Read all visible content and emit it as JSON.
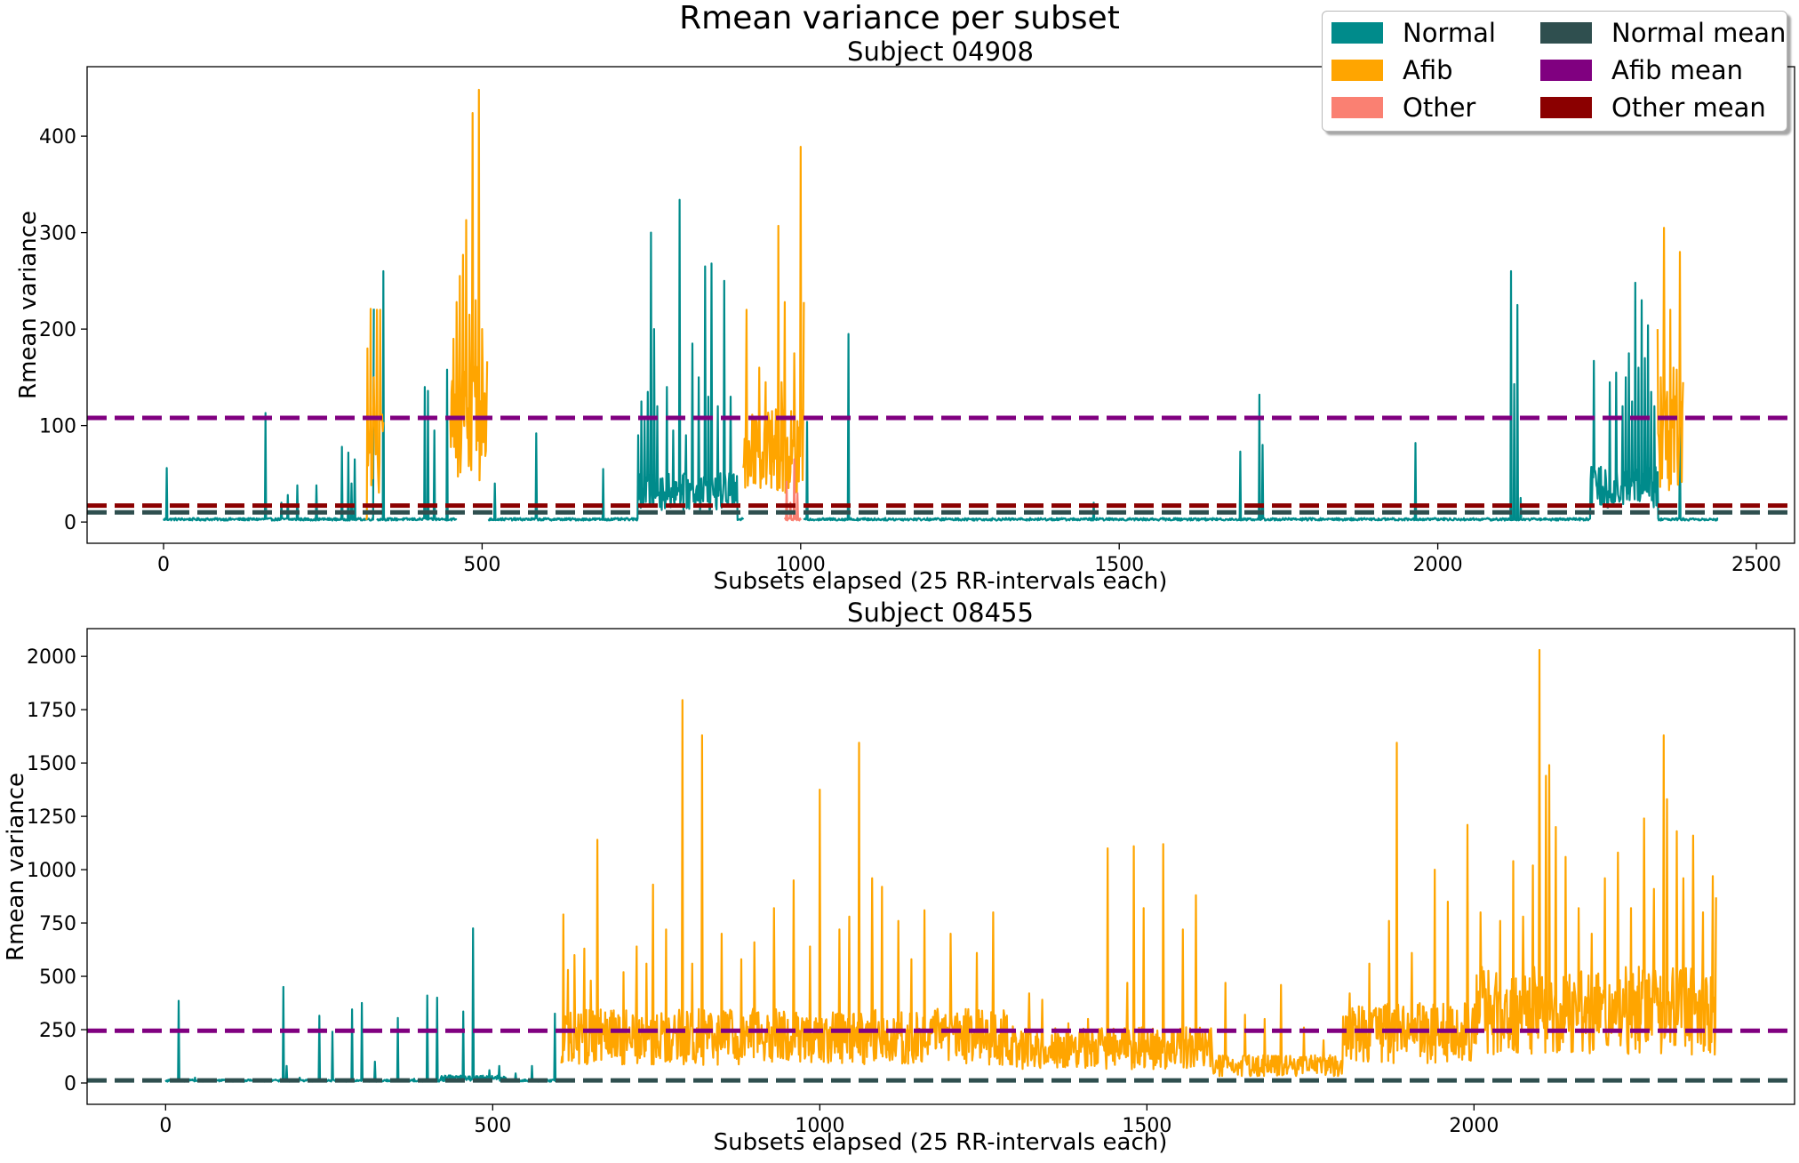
{
  "figure_title": "Rmean variance per subset",
  "legend": {
    "items": [
      {
        "label": "Normal",
        "color": "#008b8b"
      },
      {
        "label": "Afib",
        "color": "#ffa500"
      },
      {
        "label": "Other",
        "color": "#fa8072"
      },
      {
        "label": "Normal mean",
        "color": "#2f4f4f"
      },
      {
        "label": "Afib mean",
        "color": "#800080"
      },
      {
        "label": "Other mean",
        "color": "#8b0000"
      }
    ]
  },
  "chart_data": [
    {
      "type": "line",
      "title": "Subject 04908",
      "xlabel": "Subsets elapsed (25 RR-intervals each)",
      "ylabel": "Rmean variance",
      "xlim": [
        -120,
        2560
      ],
      "ylim": [
        -22,
        472
      ],
      "xticks": [
        "0",
        "500",
        "1000",
        "1500",
        "2000",
        "2500"
      ],
      "yticks": [
        "0",
        "100",
        "200",
        "300",
        "400"
      ],
      "grid": false,
      "baseline": 3,
      "series": [
        {
          "name": "Normal",
          "color": "#008b8b",
          "segments": [
            [
              0,
              330
            ],
            [
              335,
              460
            ],
            [
              510,
              910
            ],
            [
              1005,
              2440
            ]
          ],
          "spikes": [
            [
              5,
              56
            ],
            [
              160,
              113
            ],
            [
              185,
              20
            ],
            [
              195,
              28
            ],
            [
              210,
              38
            ],
            [
              240,
              38
            ],
            [
              280,
              78
            ],
            [
              290,
              72
            ],
            [
              295,
              40
            ],
            [
              300,
              65
            ],
            [
              330,
              221
            ],
            [
              345,
              260
            ],
            [
              410,
              140
            ],
            [
              415,
              136
            ],
            [
              425,
              95
            ],
            [
              445,
              158
            ],
            [
              520,
              40
            ],
            [
              585,
              92
            ],
            [
              690,
              55
            ],
            [
              745,
              90
            ],
            [
              750,
              125
            ],
            [
              755,
              105
            ],
            [
              760,
              135
            ],
            [
              765,
              300
            ],
            [
              770,
              200
            ],
            [
              775,
              120
            ],
            [
              790,
              140
            ],
            [
              800,
              95
            ],
            [
              810,
              334
            ],
            [
              820,
              90
            ],
            [
              830,
              185
            ],
            [
              840,
              150
            ],
            [
              850,
              265
            ],
            [
              855,
              130
            ],
            [
              860,
              268
            ],
            [
              870,
              120
            ],
            [
              880,
              250
            ],
            [
              890,
              130
            ],
            [
              1010,
              104
            ],
            [
              1075,
              195
            ],
            [
              1460,
              20
            ],
            [
              1690,
              73
            ],
            [
              1720,
              132
            ],
            [
              1725,
              80
            ],
            [
              1965,
              82
            ],
            [
              2115,
              260
            ],
            [
              2120,
              143
            ],
            [
              2125,
              225
            ],
            [
              2130,
              25
            ],
            [
              2245,
              167
            ],
            [
              2270,
              145
            ],
            [
              2280,
              155
            ],
            [
              2290,
              120
            ],
            [
              2295,
              150
            ],
            [
              2300,
              175
            ],
            [
              2305,
              125
            ],
            [
              2310,
              248
            ],
            [
              2315,
              160
            ],
            [
              2320,
              230
            ],
            [
              2325,
              170
            ],
            [
              2330,
              204
            ],
            [
              2335,
              135
            ],
            [
              2340,
              120
            ],
            [
              2380,
              100
            ]
          ],
          "clusters": [
            [
              745,
              900,
              35
            ],
            [
              2240,
              2345,
              40
            ]
          ]
        },
        {
          "name": "Afib",
          "color": "#ffa500",
          "segments": [
            [
              318,
              345
            ],
            [
              450,
              508
            ],
            [
              910,
              1005
            ],
            [
              2345,
              2385
            ]
          ],
          "spikes": [
            [
              320,
              180
            ],
            [
              325,
              221
            ],
            [
              330,
              150
            ],
            [
              335,
              220
            ],
            [
              340,
              220
            ],
            [
              455,
              190
            ],
            [
              460,
              228
            ],
            [
              465,
              255
            ],
            [
              470,
              277
            ],
            [
              475,
              313
            ],
            [
              480,
              215
            ],
            [
              485,
              424
            ],
            [
              490,
              230
            ],
            [
              495,
              448
            ],
            [
              500,
              200
            ],
            [
              915,
              220
            ],
            [
              925,
              105
            ],
            [
              935,
              160
            ],
            [
              945,
              145
            ],
            [
              955,
              115
            ],
            [
              965,
              307
            ],
            [
              970,
              145
            ],
            [
              975,
              228
            ],
            [
              990,
              175
            ],
            [
              1000,
              389
            ],
            [
              1005,
              228
            ],
            [
              2345,
              200
            ],
            [
              2350,
              150
            ],
            [
              2355,
              305
            ],
            [
              2360,
              135
            ],
            [
              2365,
              220
            ],
            [
              2370,
              160
            ],
            [
              2375,
              158
            ],
            [
              2380,
              280
            ],
            [
              2385,
              145
            ]
          ],
          "clusters": [
            [
              320,
              345,
              80
            ],
            [
              450,
              508,
              115
            ],
            [
              910,
              1005,
              85
            ],
            [
              2345,
              2385,
              90
            ]
          ]
        },
        {
          "name": "Other",
          "color": "#fa8072",
          "segments": [
            [
              975,
              1000
            ]
          ],
          "spikes": [
            [
              978,
              42
            ],
            [
              984,
              20
            ],
            [
              990,
              65
            ],
            [
              995,
              30
            ]
          ],
          "clusters": []
        }
      ],
      "means": [
        {
          "name": "Afib mean",
          "value": 108,
          "color": "#800080"
        },
        {
          "name": "Other mean",
          "value": 17,
          "color": "#8b0000"
        },
        {
          "name": "Normal mean",
          "value": 10,
          "color": "#2f4f4f"
        }
      ]
    },
    {
      "type": "line",
      "title": "Subject 08455",
      "xlabel": "Subsets elapsed (25 RR-intervals each)",
      "ylabel": "Rmean variance",
      "xlim": [
        -120,
        2490
      ],
      "ylim": [
        -100,
        2130
      ],
      "xticks": [
        "0",
        "500",
        "1000",
        "1500",
        "2000"
      ],
      "yticks": [
        "0",
        "250",
        "500",
        "750",
        "1000",
        "1250",
        "1500",
        "1750",
        "2000"
      ],
      "grid": false,
      "baseline": 12,
      "series": [
        {
          "name": "Normal",
          "color": "#008b8b",
          "segments": [
            [
              0,
              605
            ]
          ],
          "spikes": [
            [
              20,
              385
            ],
            [
              45,
              25
            ],
            [
              180,
              450
            ],
            [
              185,
              80
            ],
            [
              205,
              25
            ],
            [
              235,
              315
            ],
            [
              255,
              240
            ],
            [
              285,
              345
            ],
            [
              300,
              375
            ],
            [
              320,
              100
            ],
            [
              355,
              305
            ],
            [
              380,
              20
            ],
            [
              400,
              410
            ],
            [
              415,
              400
            ],
            [
              455,
              335
            ],
            [
              470,
              725
            ],
            [
              495,
              60
            ],
            [
              510,
              80
            ],
            [
              535,
              45
            ],
            [
              560,
              80
            ],
            [
              595,
              325
            ]
          ],
          "clusters": [
            [
              420,
              520,
              25
            ]
          ]
        },
        {
          "name": "Afib",
          "color": "#ffa500",
          "segments": [
            [
              605,
              2370
            ]
          ],
          "spikes": [
            [
              608,
              790
            ],
            [
              615,
              530
            ],
            [
              625,
              600
            ],
            [
              640,
              630
            ],
            [
              650,
              480
            ],
            [
              660,
              1140
            ],
            [
              700,
              520
            ],
            [
              720,
              640
            ],
            [
              735,
              560
            ],
            [
              745,
              930
            ],
            [
              765,
              720
            ],
            [
              790,
              1795
            ],
            [
              805,
              560
            ],
            [
              820,
              1630
            ],
            [
              850,
              700
            ],
            [
              880,
              580
            ],
            [
              900,
              660
            ],
            [
              930,
              820
            ],
            [
              960,
              950
            ],
            [
              985,
              640
            ],
            [
              1000,
              1375
            ],
            [
              1030,
              720
            ],
            [
              1045,
              780
            ],
            [
              1060,
              1595
            ],
            [
              1080,
              960
            ],
            [
              1095,
              920
            ],
            [
              1120,
              760
            ],
            [
              1140,
              580
            ],
            [
              1160,
              810
            ],
            [
              1200,
              700
            ],
            [
              1240,
              610
            ],
            [
              1265,
              800
            ],
            [
              1320,
              420
            ],
            [
              1340,
              390
            ],
            [
              1380,
              280
            ],
            [
              1410,
              300
            ],
            [
              1440,
              1100
            ],
            [
              1470,
              470
            ],
            [
              1480,
              1110
            ],
            [
              1495,
              820
            ],
            [
              1525,
              1120
            ],
            [
              1555,
              720
            ],
            [
              1575,
              880
            ],
            [
              1620,
              470
            ],
            [
              1650,
              320
            ],
            [
              1680,
              300
            ],
            [
              1705,
              460
            ],
            [
              1740,
              260
            ],
            [
              1770,
              200
            ],
            [
              1810,
              420
            ],
            [
              1840,
              560
            ],
            [
              1870,
              760
            ],
            [
              1882,
              1595
            ],
            [
              1905,
              610
            ],
            [
              1940,
              1000
            ],
            [
              1960,
              850
            ],
            [
              1990,
              1210
            ],
            [
              2010,
              800
            ],
            [
              2040,
              760
            ],
            [
              2060,
              1040
            ],
            [
              2075,
              780
            ],
            [
              2090,
              1020
            ],
            [
              2100,
              2030
            ],
            [
              2110,
              1440
            ],
            [
              2115,
              1490
            ],
            [
              2125,
              1200
            ],
            [
              2140,
              1060
            ],
            [
              2160,
              820
            ],
            [
              2180,
              700
            ],
            [
              2200,
              960
            ],
            [
              2220,
              1080
            ],
            [
              2240,
              820
            ],
            [
              2260,
              1240
            ],
            [
              2275,
              910
            ],
            [
              2290,
              1630
            ],
            [
              2295,
              1330
            ],
            [
              2310,
              1180
            ],
            [
              2320,
              960
            ],
            [
              2335,
              1160
            ],
            [
              2350,
              800
            ],
            [
              2365,
              970
            ],
            [
              2370,
              870
            ]
          ],
          "clusters": [
            [
              605,
              1300,
              240
            ],
            [
              1300,
              1600,
              180
            ],
            [
              1600,
              1800,
              90
            ],
            [
              1800,
              2000,
              260
            ],
            [
              2000,
              2370,
              380
            ]
          ]
        }
      ],
      "means": [
        {
          "name": "Afib mean",
          "value": 245,
          "color": "#800080"
        },
        {
          "name": "Normal mean",
          "value": 12,
          "color": "#2f4f4f"
        }
      ]
    }
  ]
}
